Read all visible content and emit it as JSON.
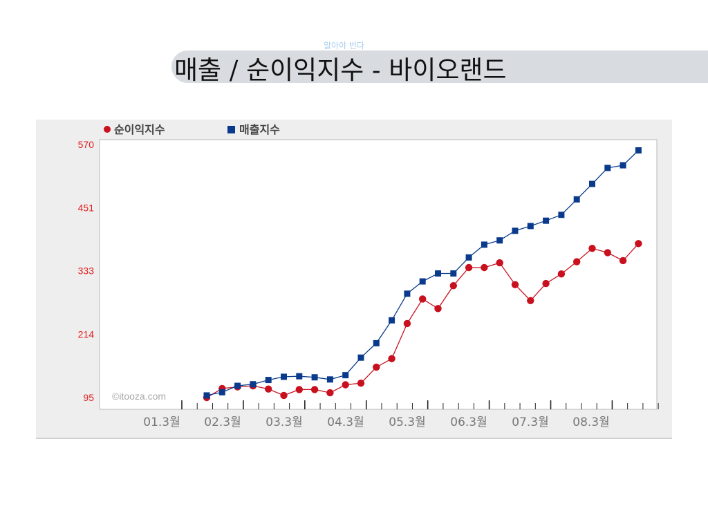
{
  "watermark": "알아야 번다",
  "title": "매출 / 순이익지수 - 바이오랜드",
  "copyright": "©itooza.com",
  "colors": {
    "profit": "#c8101e",
    "sales": "#0a3a8c",
    "axis_text": "#e01e1e",
    "tick_text": "#777777",
    "title_band": "#d8dbe0",
    "panel": "#eeeeee"
  },
  "chart_data": {
    "type": "line",
    "x_labels": [
      "01.3월",
      "02.3월",
      "03.3월",
      "04.3월",
      "05.3월",
      "06.3월",
      "07.3월",
      "08.3월"
    ],
    "y_ticks": [
      95,
      214,
      333,
      451,
      570
    ],
    "ylim": [
      95,
      570
    ],
    "legend_position": "top-left",
    "grid": false,
    "series": [
      {
        "name": "순이익지수",
        "marker": "circle",
        "color": "#c8101e",
        "values": [
          95,
          112,
          115,
          117,
          111,
          99,
          110,
          110,
          104,
          119,
          122,
          152,
          168,
          234,
          280,
          262,
          305,
          339,
          339,
          348,
          307,
          277,
          309,
          327,
          350,
          375,
          367,
          352,
          384
        ]
      },
      {
        "name": "매출지수",
        "marker": "square",
        "color": "#0a3a8c",
        "values": [
          99,
          105,
          117,
          120,
          128,
          134,
          135,
          133,
          129,
          137,
          170,
          197,
          240,
          290,
          313,
          328,
          328,
          358,
          382,
          390,
          408,
          417,
          427,
          438,
          467,
          496,
          526,
          531,
          559
        ]
      }
    ]
  }
}
